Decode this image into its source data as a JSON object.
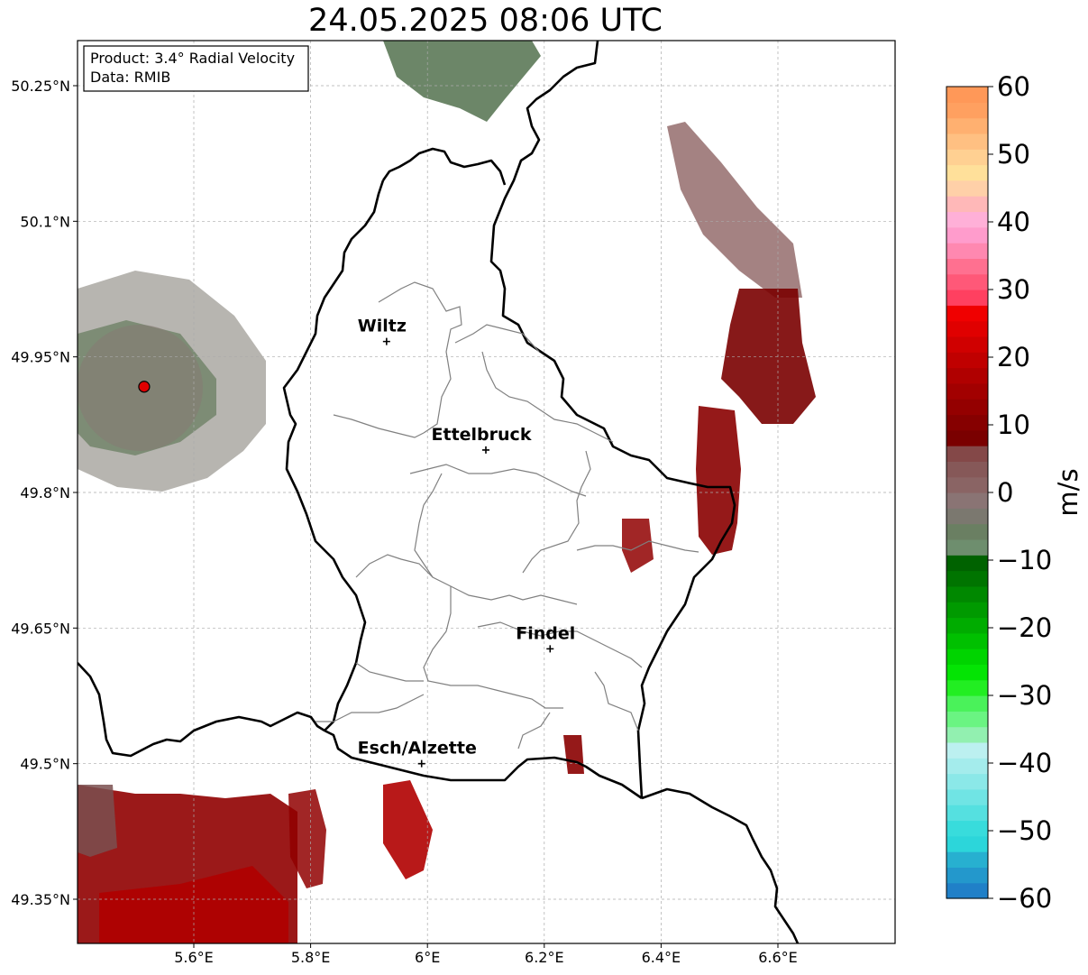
{
  "title": "24.05.2025 08:06 UTC",
  "info_box": {
    "product": "Product: 3.4° Radial Velocity",
    "data": "Data: RMIB"
  },
  "map": {
    "lon_range": [
      5.41,
      6.81
    ],
    "lat_range": [
      49.3,
      50.3
    ],
    "lat_ticks": [
      {
        "value": 50.25,
        "label": "50.25°N"
      },
      {
        "value": 50.1,
        "label": "50.1°N"
      },
      {
        "value": 49.95,
        "label": "49.95°N"
      },
      {
        "value": 49.8,
        "label": "49.8°N"
      },
      {
        "value": 49.65,
        "label": "49.65°N"
      },
      {
        "value": 49.5,
        "label": "49.5°N"
      },
      {
        "value": 49.35,
        "label": "49.35°N"
      }
    ],
    "lon_ticks": [
      {
        "value": 5.6,
        "label": "5.6°E"
      },
      {
        "value": 5.8,
        "label": "5.8°E"
      },
      {
        "value": 6.0,
        "label": "6°E"
      },
      {
        "value": 6.2,
        "label": "6.2°E"
      },
      {
        "value": 6.4,
        "label": "6.4°E"
      },
      {
        "value": 6.6,
        "label": "6.6°E"
      }
    ],
    "cities": [
      {
        "name": "Wiltz",
        "lon": 5.93,
        "lat": 49.967
      },
      {
        "name": "Ettelbruck",
        "lon": 6.1,
        "lat": 49.847
      },
      {
        "name": "Findel",
        "lon": 6.21,
        "lat": 49.627
      },
      {
        "name": "Esch/Alzette",
        "lon": 5.99,
        "lat": 49.5
      }
    ],
    "radar_site": {
      "lon": 5.515,
      "lat": 49.917,
      "color": "#e00000"
    }
  },
  "colorbar": {
    "unit": "m/s",
    "min": -60,
    "max": 60,
    "ticks": [
      {
        "value": 60,
        "label": "60"
      },
      {
        "value": 50,
        "label": "50"
      },
      {
        "value": 40,
        "label": "40"
      },
      {
        "value": 30,
        "label": "30"
      },
      {
        "value": 20,
        "label": "20"
      },
      {
        "value": 10,
        "label": "10"
      },
      {
        "value": 0,
        "label": "0"
      },
      {
        "value": -10,
        "label": "−10"
      },
      {
        "value": -20,
        "label": "−20"
      },
      {
        "value": -30,
        "label": "−30"
      },
      {
        "value": -40,
        "label": "−40"
      },
      {
        "value": -50,
        "label": "−50"
      },
      {
        "value": -60,
        "label": "−60"
      }
    ],
    "colors": [
      "#2080c8",
      "#2398cc",
      "#27b0d0",
      "#2cd6da",
      "#38dcdc",
      "#55e0e0",
      "#70e4e4",
      "#8be8e8",
      "#a4ecec",
      "#bcf0f0",
      "#92f0b0",
      "#6af482",
      "#4af25a",
      "#22ee22",
      "#04e404",
      "#00d400",
      "#00c000",
      "#00ac00",
      "#009a00",
      "#008800",
      "#007400",
      "#006200",
      "#6e8e6e",
      "#6a7f62",
      "#7b786f",
      "#8a7474",
      "#8a6464",
      "#865858",
      "#844848",
      "#7a0000",
      "#860000",
      "#940000",
      "#a20000",
      "#b00000",
      "#c00000",
      "#d00000",
      "#e00000",
      "#f00000",
      "#ff4060",
      "#ff5878",
      "#ff7090",
      "#ff88b0",
      "#ff9ccc",
      "#ffb0d8",
      "#ffb8b8",
      "#ffd0a8",
      "#ffe09a",
      "#ffd092",
      "#ffc082",
      "#ffb070",
      "#ffa060",
      "#ff9858"
    ]
  }
}
